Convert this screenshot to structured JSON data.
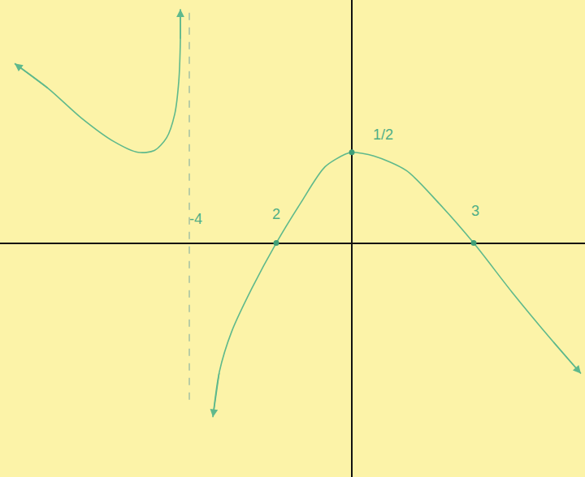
{
  "chart_data": {
    "type": "line",
    "xlim": [
      -8.66,
      5.74
    ],
    "ylim": [
      -1.29,
      1.34
    ],
    "grid": false,
    "tick_labels": false,
    "series": [
      {
        "color": "#5fb98c",
        "marker": "arrow",
        "line_style": "solid",
        "x": [
          -8.3,
          -7.46,
          -6.66,
          -5.86,
          -5.26,
          -4.86,
          -4.56,
          -4.36,
          -4.26,
          -4.22,
          -4.22
        ],
        "values": [
          0.99,
          0.85,
          0.69,
          0.56,
          0.5,
          0.51,
          0.58,
          0.71,
          0.89,
          1.12,
          1.29
        ]
      },
      {
        "color": "#5fb98c",
        "marker": "arrow",
        "line_style": "solid",
        "x": [
          -3.42,
          -3.26,
          -2.96,
          -2.46,
          -1.86,
          -1.26,
          -0.66,
          -0.16,
          0,
          0.54,
          1.34,
          2.14,
          3,
          3.94,
          4.94,
          5.64
        ],
        "values": [
          -0.96,
          -0.71,
          -0.49,
          -0.25,
          0,
          0.22,
          0.42,
          0.49,
          0.5,
          0.48,
          0.4,
          0.22,
          0,
          -0.27,
          -0.54,
          -0.72
        ]
      },
      {
        "color": "#a9c4a4",
        "line_style": "dashed",
        "x": [
          -4,
          -4
        ],
        "values": [
          1.27,
          -0.9
        ]
      }
    ],
    "annotations": [
      {
        "text": "-4",
        "x": -4,
        "y": 0
      },
      {
        "text": "2",
        "x": -1.86,
        "y": 0,
        "marker": "dot"
      },
      {
        "text": "1/2",
        "x": 0,
        "y": 0.5,
        "marker": "dot"
      },
      {
        "text": "3",
        "x": 3,
        "y": 0,
        "marker": "dot"
      }
    ]
  }
}
